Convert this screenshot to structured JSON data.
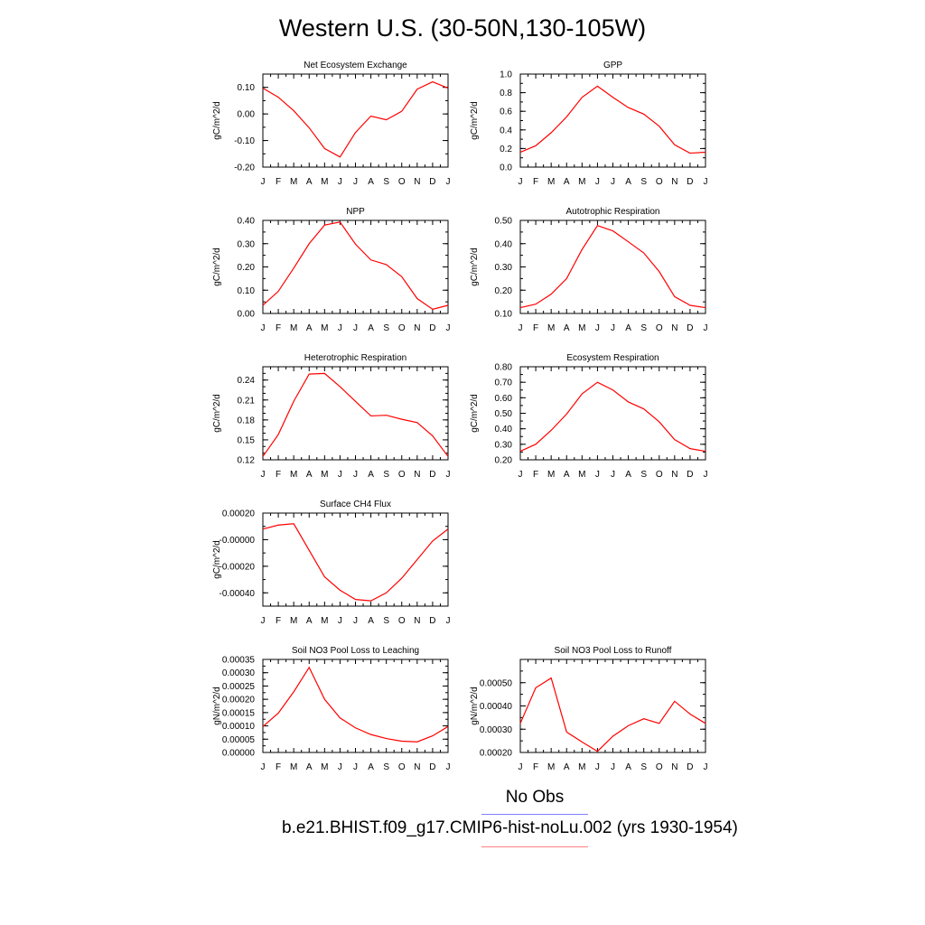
{
  "title": "Western U.S. (30-50N,130-105W)",
  "legend": {
    "obs_label": "No Obs",
    "obs_color": "#8080ff",
    "case_label": "b.e21.BHIST.f09_g17.CMIP6-hist-noLu.002 (yrs 1930-1954)",
    "case_color": "#ff8080"
  },
  "chart_data": [
    {
      "type": "line",
      "title": "Net Ecosystem Exchange",
      "ylabel": "gC/m^2/d",
      "xticks": [
        "J",
        "F",
        "M",
        "A",
        "M",
        "J",
        "J",
        "A",
        "S",
        "O",
        "N",
        "D",
        "J"
      ],
      "ylim": [
        -0.2,
        0.15
      ],
      "yticks": [
        -0.2,
        -0.1,
        0.0,
        0.1
      ],
      "ytick_labels": [
        "-0.20",
        "-0.10",
        "0.00",
        "0.10"
      ],
      "y_minor_step": 0.05,
      "line_color": "#ff0000",
      "series": [
        {
          "values": [
            0.097,
            0.063,
            0.012,
            -0.052,
            -0.13,
            -0.162,
            -0.07,
            -0.008,
            -0.022,
            0.01,
            0.093,
            0.121,
            0.097
          ]
        }
      ]
    },
    {
      "type": "line",
      "title": "GPP",
      "ylabel": "gC/m^2/d",
      "xticks": [
        "J",
        "F",
        "M",
        "A",
        "M",
        "J",
        "J",
        "A",
        "S",
        "O",
        "N",
        "D",
        "J"
      ],
      "ylim": [
        0,
        1.0
      ],
      "yticks": [
        0,
        0.2,
        0.4,
        0.6,
        0.8,
        1.0
      ],
      "ytick_labels": [
        "0.0",
        "0.2",
        "0.4",
        "0.6",
        "0.8",
        "1.0"
      ],
      "y_minor_step": 0.1,
      "line_color": "#ff0000",
      "series": [
        {
          "values": [
            0.16,
            0.23,
            0.37,
            0.54,
            0.75,
            0.87,
            0.75,
            0.64,
            0.57,
            0.44,
            0.24,
            0.15,
            0.16
          ]
        }
      ]
    },
    {
      "type": "line",
      "title": "NPP",
      "ylabel": "gC/m^2/d",
      "xticks": [
        "J",
        "F",
        "M",
        "A",
        "M",
        "J",
        "J",
        "A",
        "S",
        "O",
        "N",
        "D",
        "J"
      ],
      "ylim": [
        0,
        0.4
      ],
      "yticks": [
        0,
        0.1,
        0.2,
        0.3,
        0.4
      ],
      "ytick_labels": [
        "0.00",
        "0.10",
        "0.20",
        "0.30",
        "0.40"
      ],
      "y_minor_step": 0.05,
      "line_color": "#ff0000",
      "series": [
        {
          "values": [
            0.035,
            0.095,
            0.195,
            0.3,
            0.38,
            0.393,
            0.298,
            0.23,
            0.21,
            0.158,
            0.064,
            0.018,
            0.035
          ]
        }
      ]
    },
    {
      "type": "line",
      "title": "Autotrophic Respiration",
      "ylabel": "gC/m^2/d",
      "xticks": [
        "J",
        "F",
        "M",
        "A",
        "M",
        "J",
        "J",
        "A",
        "S",
        "O",
        "N",
        "D",
        "J"
      ],
      "ylim": [
        0.1,
        0.5
      ],
      "yticks": [
        0.1,
        0.2,
        0.3,
        0.4,
        0.5
      ],
      "ytick_labels": [
        "0.10",
        "0.20",
        "0.30",
        "0.40",
        "0.50"
      ],
      "y_minor_step": 0.05,
      "line_color": "#ff0000",
      "series": [
        {
          "values": [
            0.125,
            0.14,
            0.183,
            0.25,
            0.375,
            0.478,
            0.455,
            0.408,
            0.36,
            0.28,
            0.172,
            0.135,
            0.125
          ]
        }
      ]
    },
    {
      "type": "line",
      "title": "Heterotrophic Respiration",
      "ylabel": "gC/m^2/d",
      "xticks": [
        "J",
        "F",
        "M",
        "A",
        "M",
        "J",
        "J",
        "A",
        "S",
        "O",
        "N",
        "D",
        "J"
      ],
      "ylim": [
        0.12,
        0.26
      ],
      "yticks": [
        0.12,
        0.15,
        0.18,
        0.21,
        0.24
      ],
      "ytick_labels": [
        "0.12",
        "0.15",
        "0.18",
        "0.21",
        "0.24"
      ],
      "y_minor_step": 0.01,
      "line_color": "#ff0000",
      "series": [
        {
          "values": [
            0.125,
            0.158,
            0.208,
            0.249,
            0.25,
            0.23,
            0.208,
            0.186,
            0.187,
            0.181,
            0.176,
            0.156,
            0.125
          ]
        }
      ]
    },
    {
      "type": "line",
      "title": "Ecosystem Respiration",
      "ylabel": "gC/m^2/d",
      "xticks": [
        "J",
        "F",
        "M",
        "A",
        "M",
        "J",
        "J",
        "A",
        "S",
        "O",
        "N",
        "D",
        "J"
      ],
      "ylim": [
        0.2,
        0.8
      ],
      "yticks": [
        0.2,
        0.3,
        0.4,
        0.5,
        0.6,
        0.7,
        0.8
      ],
      "ytick_labels": [
        "0.20",
        "0.30",
        "0.40",
        "0.50",
        "0.60",
        "0.70",
        "0.80"
      ],
      "y_minor_step": 0.05,
      "line_color": "#ff0000",
      "series": [
        {
          "values": [
            0.255,
            0.3,
            0.39,
            0.495,
            0.625,
            0.7,
            0.65,
            0.573,
            0.528,
            0.445,
            0.33,
            0.272,
            0.255
          ]
        }
      ]
    },
    {
      "type": "line",
      "title": "Surface CH4 Flux",
      "ylabel": "gC/m^2/d",
      "xticks": [
        "J",
        "F",
        "M",
        "A",
        "M",
        "J",
        "J",
        "A",
        "S",
        "O",
        "N",
        "D",
        "J"
      ],
      "ylim": [
        -0.0005,
        0.0002
      ],
      "yticks": [
        -0.0004,
        -0.0002,
        0.0,
        0.0002
      ],
      "ytick_labels": [
        "-0.00040",
        "-0.00020",
        "-0.00000",
        "0.00020"
      ],
      "y_minor_step": 0.0001,
      "line_color": "#ff0000",
      "series": [
        {
          "values": [
            8e-05,
            0.00011,
            0.00012,
            -8e-05,
            -0.00028,
            -0.00038,
            -0.00045,
            -0.00046,
            -0.0004,
            -0.00029,
            -0.00015,
            -1e-05,
            8e-05
          ]
        }
      ]
    },
    {
      "type": "line",
      "title": "Soil NO3 Pool Loss to Leaching",
      "ylabel": "gN/m^2/d",
      "xticks": [
        "J",
        "F",
        "M",
        "A",
        "M",
        "J",
        "J",
        "A",
        "S",
        "O",
        "N",
        "D",
        "J"
      ],
      "ylim": [
        0,
        0.00035
      ],
      "yticks": [
        0,
        5e-05,
        0.0001,
        0.00015,
        0.0002,
        0.00025,
        0.0003,
        0.00035
      ],
      "ytick_labels": [
        "0.00000",
        "0.00005",
        "0.00010",
        "0.00015",
        "0.00020",
        "0.00025",
        "0.00030",
        "0.00035"
      ],
      "y_minor_step": 2.5e-05,
      "line_color": "#ff0000",
      "series": [
        {
          "values": [
            9.75e-05,
            0.000148,
            0.000228,
            0.00032,
            0.0002,
            0.00013,
            9.25e-05,
            6.75e-05,
            5.25e-05,
            4.25e-05,
            4e-05,
            6.25e-05,
            9.75e-05
          ]
        }
      ]
    },
    {
      "type": "line",
      "title": "Soil NO3 Pool Loss to Runoff",
      "ylabel": "gN/m^2/d",
      "xticks": [
        "J",
        "F",
        "M",
        "A",
        "M",
        "J",
        "J",
        "A",
        "S",
        "O",
        "N",
        "D",
        "J"
      ],
      "ylim": [
        0.0002,
        0.0006
      ],
      "yticks": [
        0.0002,
        0.0003,
        0.0004,
        0.0005
      ],
      "ytick_labels": [
        "0.00020",
        "0.00030",
        "0.00040",
        "0.00050"
      ],
      "y_minor_step": 5e-05,
      "line_color": "#ff0000",
      "series": [
        {
          "values": [
            0.000325,
            0.000478,
            0.00052,
            0.000288,
            0.000245,
            0.000205,
            0.00027,
            0.000315,
            0.000345,
            0.000325,
            0.00042,
            0.000365,
            0.000325
          ]
        }
      ]
    }
  ]
}
